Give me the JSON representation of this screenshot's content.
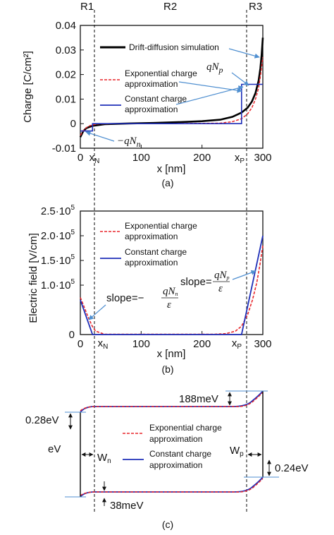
{
  "regions": [
    "R1",
    "R2",
    "R3"
  ],
  "colors": {
    "simulation": "#000000",
    "exponential": "#e8262b",
    "constant": "#1f2fb8",
    "arrow": "#4f8fd0",
    "divider": "#333333"
  },
  "panel_a": {
    "caption": "(a)",
    "ylabel": "Charge [C/cm²]",
    "xlabel": "x [nm]",
    "x_ticks": [
      "0",
      "100",
      "200",
      "300"
    ],
    "x_marks": [
      "x",
      "N",
      "x",
      "P"
    ],
    "y_ticks": [
      "0.04",
      "0.03",
      "0.02",
      "0.01",
      "0",
      "-0.01"
    ],
    "legend": [
      "Drift-diffusion simulation",
      "Exponential charge",
      "approximation",
      "Constant charge",
      "approximation"
    ],
    "annotations": {
      "qNp": [
        "qN",
        "p"
      ],
      "neg_qNn": [
        "−qN",
        "n"
      ]
    }
  },
  "panel_b": {
    "caption": "(b)",
    "ylabel": "Electric field [V/cm]",
    "xlabel": "x [nm]",
    "x_ticks": [
      "0",
      "100",
      "200",
      "300"
    ],
    "x_marks": [
      "x",
      "N",
      "x",
      "P"
    ],
    "y_ticks": [
      [
        "2.5·10",
        "5"
      ],
      [
        "2.0·10",
        "5"
      ],
      [
        "1.5·10",
        "5"
      ],
      [
        "1.0·10",
        "5"
      ],
      [
        "0",
        ""
      ]
    ],
    "legend": [
      "Exponential charge",
      "approximation",
      "Constant charge",
      "approximation"
    ],
    "slopes": {
      "left_prefix": "slope=−",
      "left_num": [
        "qN",
        "n"
      ],
      "right_prefix": "slope=",
      "right_num": [
        "qN",
        "p"
      ],
      "denominator": "ε"
    }
  },
  "panel_c": {
    "caption": "(c)",
    "ylabel": "eV",
    "legend": [
      "Exponential charge",
      "approximation",
      "Constant charge",
      "approximation"
    ],
    "labels": {
      "w_n": [
        "W",
        "n"
      ],
      "w_p": [
        "W",
        "p"
      ],
      "e188": "188meV",
      "e028": "0.28eV",
      "e038": "38meV",
      "e024": "0.24eV"
    }
  },
  "chart_data": [
    {
      "type": "line",
      "title": "",
      "xlabel": "x [nm]",
      "ylabel": "Charge [C/cm²]",
      "xlim": [
        0,
        300
      ],
      "ylim": [
        -0.01,
        0.04
      ],
      "boundaries": {
        "x_N": 20,
        "x_P": 265
      },
      "series": [
        {
          "name": "Drift-diffusion simulation",
          "x": [
            0,
            5,
            10,
            20,
            40,
            80,
            120,
            160,
            200,
            230,
            250,
            265,
            275,
            282,
            288,
            293,
            296,
            298,
            300
          ],
          "y": [
            -0.0055,
            -0.003,
            -0.0018,
            -0.0009,
            -0.0002,
            0.0001,
            0.0003,
            0.0006,
            0.001,
            0.0016,
            0.0028,
            0.0045,
            0.0065,
            0.009,
            0.0125,
            0.0175,
            0.0225,
            0.028,
            0.035
          ]
        },
        {
          "name": "Exponential charge approximation",
          "x": [
            0,
            5,
            10,
            15,
            20,
            30,
            60,
            150,
            230,
            250,
            265,
            275,
            282,
            288,
            293,
            297,
            300
          ],
          "y": [
            -0.0048,
            -0.0028,
            -0.0016,
            -0.0009,
            -0.0005,
            -0.0001,
            0,
            0,
            0.0002,
            0.0008,
            0.002,
            0.004,
            0.0065,
            0.01,
            0.0145,
            0.021,
            0.027
          ]
        },
        {
          "name": "Constant charge approximation",
          "x": [
            0,
            20,
            20,
            265,
            265,
            300
          ],
          "y": [
            -0.003,
            -0.003,
            0,
            0,
            0.016,
            0.016
          ]
        }
      ]
    },
    {
      "type": "line",
      "title": "",
      "xlabel": "x [nm]",
      "ylabel": "Electric field [V/cm]",
      "xlim": [
        0,
        300
      ],
      "ylim": [
        0,
        250000
      ],
      "boundaries": {
        "x_N": 20,
        "x_P": 265
      },
      "series": [
        {
          "name": "Exponential charge approximation",
          "x": [
            0,
            5,
            10,
            15,
            20,
            25,
            40,
            220,
            240,
            255,
            265,
            275,
            283,
            290,
            295,
            300
          ],
          "y": [
            75000,
            60000,
            44000,
            29000,
            16000,
            7000,
            500,
            500,
            2000,
            7000,
            17000,
            40000,
            70000,
            105000,
            140000,
            180000
          ]
        },
        {
          "name": "Constant charge approximation",
          "x": [
            0,
            20,
            265,
            300
          ],
          "y": [
            70000,
            0,
            0,
            200000
          ]
        }
      ]
    }
  ]
}
